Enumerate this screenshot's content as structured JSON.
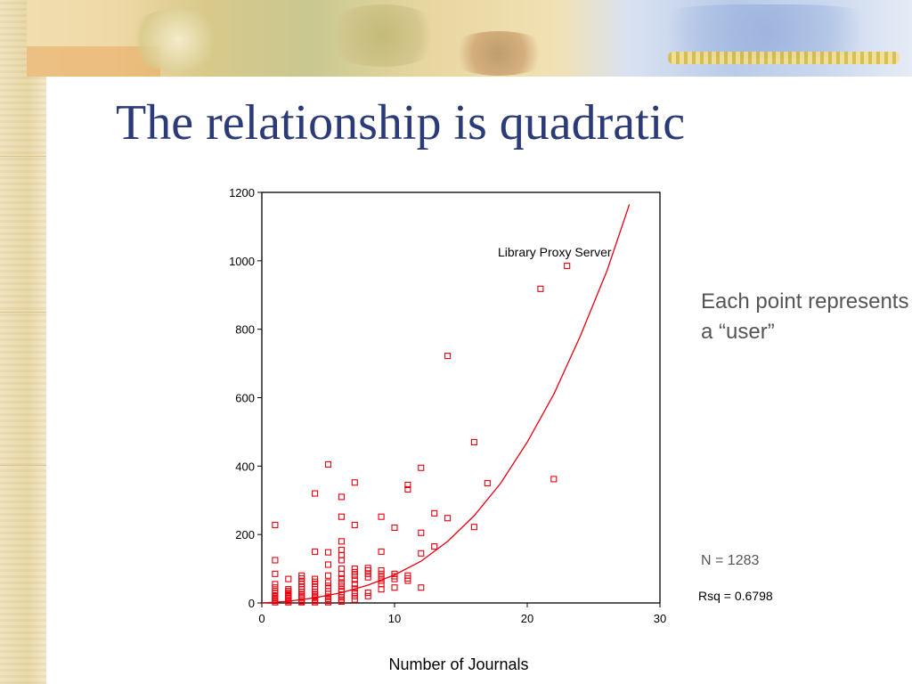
{
  "slide": {
    "title": "The relationship is quadratic",
    "side_note": "Each point represents a “user”",
    "n_label": "N = 1283"
  },
  "colors": {
    "title": "#2b3a78",
    "marker": "#e8000f",
    "fit_line": "#e8000f",
    "side_text": "#555555"
  },
  "chart_data": {
    "type": "scatter",
    "title": "",
    "xlabel": "Number of Journals",
    "ylabel": "",
    "xlim": [
      0,
      30
    ],
    "ylim": [
      0,
      1200
    ],
    "xticks": [
      0,
      10,
      20,
      30
    ],
    "yticks": [
      0,
      200,
      400,
      600,
      800,
      1000,
      1200
    ],
    "grid": false,
    "marker": "open-square",
    "annotation": "Library Proxy Server",
    "rsq_label": "Rsq = 0.6798",
    "fit": {
      "type": "quadratic",
      "x": [
        0,
        2,
        4,
        6,
        8,
        10,
        12,
        14,
        16,
        18,
        20,
        22,
        24,
        26,
        27.7
      ],
      "y": [
        0,
        5,
        15,
        30,
        52,
        82,
        122,
        180,
        255,
        350,
        470,
        610,
        780,
        970,
        1165
      ]
    },
    "points": [
      [
        1,
        2
      ],
      [
        1,
        6
      ],
      [
        1,
        10
      ],
      [
        1,
        14
      ],
      [
        1,
        18
      ],
      [
        1,
        22
      ],
      [
        1,
        28
      ],
      [
        1,
        35
      ],
      [
        1,
        45
      ],
      [
        1,
        55
      ],
      [
        1,
        85
      ],
      [
        1,
        125
      ],
      [
        1,
        228
      ],
      [
        2,
        2
      ],
      [
        2,
        6
      ],
      [
        2,
        10
      ],
      [
        2,
        14
      ],
      [
        2,
        18
      ],
      [
        2,
        22
      ],
      [
        2,
        26
      ],
      [
        2,
        30
      ],
      [
        2,
        35
      ],
      [
        2,
        40
      ],
      [
        2,
        70
      ],
      [
        3,
        2
      ],
      [
        3,
        5
      ],
      [
        3,
        10
      ],
      [
        3,
        15
      ],
      [
        3,
        20
      ],
      [
        3,
        26
      ],
      [
        3,
        32
      ],
      [
        3,
        40
      ],
      [
        3,
        48
      ],
      [
        3,
        55
      ],
      [
        3,
        62
      ],
      [
        3,
        72
      ],
      [
        3,
        80
      ],
      [
        4,
        2
      ],
      [
        4,
        6
      ],
      [
        4,
        10
      ],
      [
        4,
        15
      ],
      [
        4,
        20
      ],
      [
        4,
        26
      ],
      [
        4,
        32
      ],
      [
        4,
        40
      ],
      [
        4,
        48
      ],
      [
        4,
        56
      ],
      [
        4,
        62
      ],
      [
        4,
        70
      ],
      [
        4,
        150
      ],
      [
        4,
        320
      ],
      [
        5,
        2
      ],
      [
        5,
        6
      ],
      [
        5,
        12
      ],
      [
        5,
        18
      ],
      [
        5,
        26
      ],
      [
        5,
        34
      ],
      [
        5,
        42
      ],
      [
        5,
        50
      ],
      [
        5,
        60
      ],
      [
        5,
        80
      ],
      [
        5,
        112
      ],
      [
        5,
        148
      ],
      [
        5,
        405
      ],
      [
        6,
        4
      ],
      [
        6,
        10
      ],
      [
        6,
        16
      ],
      [
        6,
        24
      ],
      [
        6,
        32
      ],
      [
        6,
        40
      ],
      [
        6,
        50
      ],
      [
        6,
        60
      ],
      [
        6,
        72
      ],
      [
        6,
        85
      ],
      [
        6,
        100
      ],
      [
        6,
        125
      ],
      [
        6,
        140
      ],
      [
        6,
        155
      ],
      [
        6,
        180
      ],
      [
        6,
        252
      ],
      [
        6,
        310
      ],
      [
        7,
        10
      ],
      [
        7,
        20
      ],
      [
        7,
        30
      ],
      [
        7,
        42
      ],
      [
        7,
        55
      ],
      [
        7,
        68
      ],
      [
        7,
        80
      ],
      [
        7,
        90
      ],
      [
        7,
        100
      ],
      [
        7,
        228
      ],
      [
        7,
        352
      ],
      [
        8,
        20
      ],
      [
        8,
        30
      ],
      [
        8,
        75
      ],
      [
        8,
        85
      ],
      [
        8,
        95
      ],
      [
        8,
        102
      ],
      [
        9,
        40
      ],
      [
        9,
        55
      ],
      [
        9,
        65
      ],
      [
        9,
        75
      ],
      [
        9,
        85
      ],
      [
        9,
        95
      ],
      [
        9,
        150
      ],
      [
        9,
        252
      ],
      [
        10,
        45
      ],
      [
        10,
        70
      ],
      [
        10,
        78
      ],
      [
        10,
        85
      ],
      [
        10,
        220
      ],
      [
        11,
        65
      ],
      [
        11,
        72
      ],
      [
        11,
        80
      ],
      [
        11,
        332
      ],
      [
        11,
        345
      ],
      [
        12,
        45
      ],
      [
        12,
        145
      ],
      [
        12,
        205
      ],
      [
        12,
        395
      ],
      [
        13,
        165
      ],
      [
        13,
        262
      ],
      [
        14,
        248
      ],
      [
        14,
        722
      ],
      [
        16,
        222
      ],
      [
        16,
        470
      ],
      [
        17,
        350
      ],
      [
        21,
        918
      ],
      [
        22,
        362
      ],
      [
        23,
        985
      ]
    ]
  }
}
